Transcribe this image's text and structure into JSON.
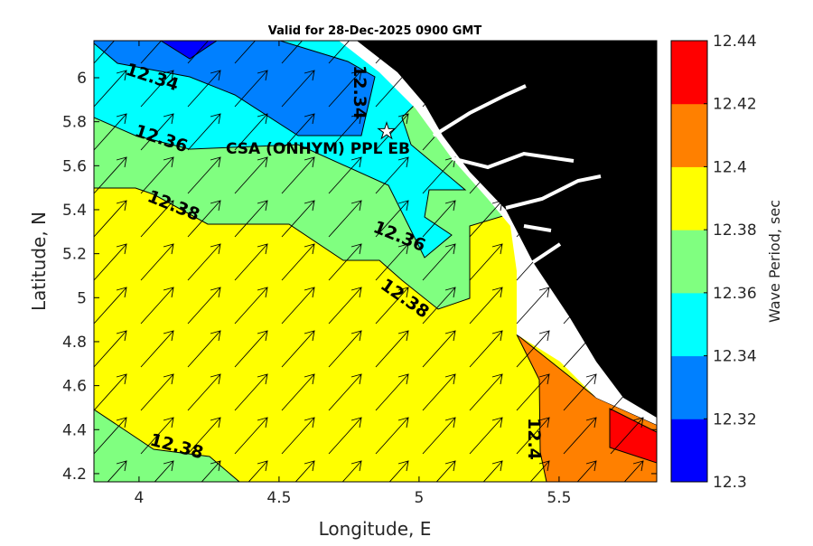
{
  "chart_data": {
    "type": "heatmap",
    "title": "Valid for 28-Dec-2025 0900 GMT",
    "xlabel": "Longitude, E",
    "ylabel": "Latitude, N",
    "xlim": [
      3.84,
      5.85
    ],
    "ylim": [
      4.165,
      6.17
    ],
    "xticks": [
      "4",
      "4.5",
      "5",
      "5.5"
    ],
    "yticks": [
      "4.2",
      "4.4",
      "4.6",
      "4.8",
      "5",
      "5.2",
      "5.4",
      "5.6",
      "5.8",
      "6"
    ],
    "colorbar": {
      "label": "Wave Period, sec",
      "ticks": [
        "12.3",
        "12.32",
        "12.34",
        "12.36",
        "12.38",
        "12.4",
        "12.42",
        "12.44"
      ],
      "colors": [
        "#0000ff",
        "#0080ff",
        "#00ffff",
        "#80ff80",
        "#ffff00",
        "#ff8000",
        "#ff0000"
      ]
    },
    "contour_labels": [
      "12.34",
      "12.34",
      "12.36",
      "12.36",
      "12.38",
      "12.38",
      "12.38",
      "12.4"
    ],
    "station": {
      "name": "CSA (ONHYM) PPL EB",
      "lon": 4.88,
      "lat": 5.75
    },
    "vector_direction": "north-east",
    "land_color": "#000000"
  }
}
